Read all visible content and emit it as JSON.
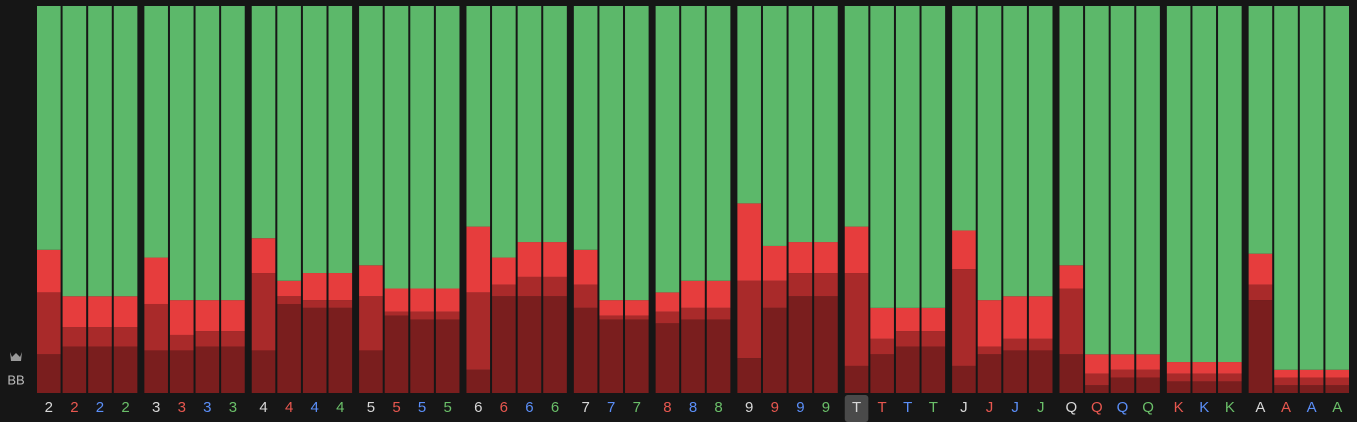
{
  "chart_data": {
    "type": "stacked_bar",
    "y_label": "BB",
    "categories": [
      "2",
      "2",
      "2",
      "2",
      "3",
      "3",
      "3",
      "3",
      "4",
      "4",
      "4",
      "4",
      "5",
      "5",
      "5",
      "5",
      "6",
      "6",
      "6",
      "6",
      "7",
      "7",
      "7",
      "8",
      "8",
      "8",
      "9",
      "9",
      "9",
      "9",
      "T",
      "T",
      "T",
      "T",
      "J",
      "J",
      "J",
      "J",
      "Q",
      "Q",
      "Q",
      "Q",
      "K",
      "K",
      "K",
      "A",
      "A",
      "A",
      "A"
    ],
    "label_colors": [
      "#d8d8d8",
      "#e8574f",
      "#5b8ff9",
      "#6abf69",
      "#d8d8d8",
      "#e8574f",
      "#5b8ff9",
      "#6abf69",
      "#d8d8d8",
      "#e8574f",
      "#5b8ff9",
      "#6abf69",
      "#d8d8d8",
      "#e8574f",
      "#5b8ff9",
      "#6abf69",
      "#d8d8d8",
      "#e8574f",
      "#5b8ff9",
      "#6abf69",
      "#d8d8d8",
      "#5b8ff9",
      "#6abf69",
      "#e8574f",
      "#5b8ff9",
      "#6abf69",
      "#d8d8d8",
      "#e8574f",
      "#5b8ff9",
      "#6abf69",
      "#d8d8d8",
      "#e8574f",
      "#5b8ff9",
      "#6abf69",
      "#d8d8d8",
      "#e8574f",
      "#5b8ff9",
      "#6abf69",
      "#d8d8d8",
      "#e8574f",
      "#5b8ff9",
      "#6abf69",
      "#e8574f",
      "#5b8ff9",
      "#6abf69",
      "#d8d8d8",
      "#e8574f",
      "#5b8ff9",
      "#6abf69"
    ],
    "highlighted_category": 30,
    "ylim": [
      0,
      100
    ],
    "series": [
      {
        "color": "#7a1e1e",
        "values": [
          10,
          12,
          12,
          12,
          11,
          11,
          12,
          12,
          11,
          23,
          22,
          22,
          11,
          20,
          19,
          19,
          6,
          25,
          25,
          25,
          22,
          19,
          19,
          18,
          19,
          19,
          9,
          22,
          25,
          25,
          7,
          10,
          12,
          12,
          7,
          10,
          11,
          11,
          10,
          2,
          4,
          4,
          3,
          3,
          3,
          24,
          2,
          2,
          2
        ]
      },
      {
        "color": "#a92a2a",
        "values": [
          16,
          5,
          5,
          5,
          12,
          4,
          4,
          4,
          20,
          2,
          2,
          2,
          14,
          1,
          2,
          2,
          20,
          3,
          5,
          5,
          6,
          1,
          1,
          3,
          3,
          3,
          20,
          7,
          6,
          6,
          24,
          4,
          4,
          4,
          25,
          2,
          3,
          3,
          17,
          3,
          2,
          2,
          2,
          2,
          2,
          4,
          2,
          2,
          2
        ]
      },
      {
        "color": "#e63d3d",
        "values": [
          11,
          8,
          8,
          8,
          12,
          9,
          8,
          8,
          9,
          4,
          7,
          7,
          8,
          6,
          6,
          6,
          17,
          7,
          9,
          9,
          9,
          4,
          4,
          5,
          7,
          7,
          20,
          9,
          8,
          8,
          12,
          8,
          6,
          6,
          10,
          12,
          11,
          11,
          6,
          5,
          4,
          4,
          3,
          3,
          3,
          8,
          2,
          2,
          2
        ]
      },
      {
        "color": "#5cb86a",
        "values": [
          63,
          75,
          75,
          75,
          65,
          76,
          76,
          76,
          60,
          71,
          69,
          69,
          67,
          73,
          73,
          73,
          57,
          65,
          61,
          61,
          63,
          76,
          76,
          74,
          71,
          71,
          51,
          62,
          61,
          61,
          57,
          78,
          78,
          78,
          58,
          76,
          75,
          75,
          67,
          90,
          90,
          90,
          92,
          92,
          92,
          64,
          94,
          94,
          94
        ]
      }
    ]
  }
}
